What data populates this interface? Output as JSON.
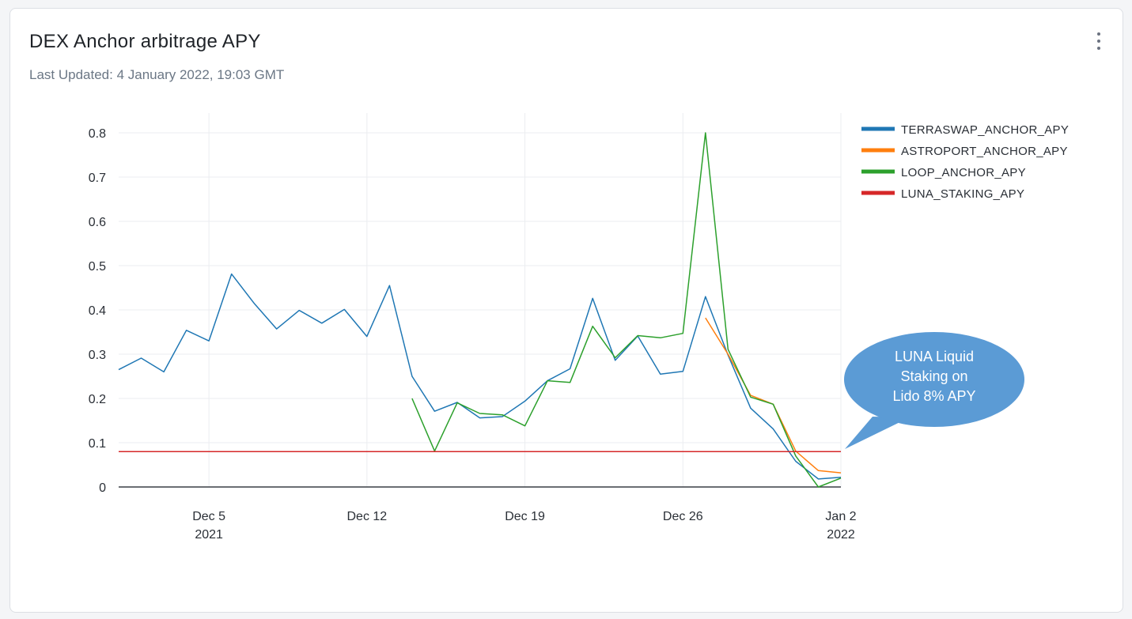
{
  "card": {
    "title": "DEX Anchor arbitrage APY",
    "subtitle": "Last Updated: 4 January 2022, 19:03 GMT",
    "menu_icon": "more-vertical-icon"
  },
  "callout": {
    "lines": [
      "LUNA Liquid",
      "Staking on",
      "Lido 8% APY"
    ],
    "color": "#5b9bd5"
  },
  "chart_data": {
    "type": "line",
    "x_axis": {
      "type": "date",
      "range": [
        "2021-12-01",
        "2022-01-02"
      ],
      "ticks": [
        {
          "date": "2021-12-05",
          "label": "Dec 5",
          "sublabel": "2021"
        },
        {
          "date": "2021-12-12",
          "label": "Dec 12",
          "sublabel": ""
        },
        {
          "date": "2021-12-19",
          "label": "Dec 19",
          "sublabel": ""
        },
        {
          "date": "2021-12-26",
          "label": "Dec 26",
          "sublabel": ""
        },
        {
          "date": "2022-01-02",
          "label": "Jan 2",
          "sublabel": "2022"
        }
      ]
    },
    "y_axis": {
      "range": [
        0,
        0.8
      ],
      "ticks": [
        0,
        0.1,
        0.2,
        0.3,
        0.4,
        0.5,
        0.6,
        0.7,
        0.8
      ],
      "tick_labels": [
        "0",
        "0.1",
        "0.2",
        "0.3",
        "0.4",
        "0.5",
        "0.6",
        "0.7",
        "0.8"
      ]
    },
    "grid": true,
    "legend_position": "top-right",
    "series": [
      {
        "name": "TERRASWAP_ANCHOR_APY",
        "color": "#1f77b4",
        "x": [
          "2021-12-01",
          "2021-12-02",
          "2021-12-03",
          "2021-12-04",
          "2021-12-05",
          "2021-12-06",
          "2021-12-07",
          "2021-12-08",
          "2021-12-09",
          "2021-12-10",
          "2021-12-11",
          "2021-12-12",
          "2021-12-13",
          "2021-12-14",
          "2021-12-15",
          "2021-12-16",
          "2021-12-17",
          "2021-12-18",
          "2021-12-19",
          "2021-12-20",
          "2021-12-21",
          "2021-12-22",
          "2021-12-23",
          "2021-12-24",
          "2021-12-25",
          "2021-12-26",
          "2021-12-27",
          "2021-12-28",
          "2021-12-29",
          "2021-12-30",
          "2021-12-31",
          "2022-01-01",
          "2022-01-02"
        ],
        "y": [
          0.265,
          0.291,
          0.26,
          0.354,
          0.33,
          0.481,
          0.415,
          0.357,
          0.399,
          0.37,
          0.401,
          0.34,
          0.455,
          0.25,
          0.171,
          0.191,
          0.156,
          0.159,
          0.194,
          0.24,
          0.267,
          0.426,
          0.286,
          0.341,
          0.255,
          0.261,
          0.43,
          0.298,
          0.178,
          0.131,
          0.058,
          0.018,
          0.022
        ]
      },
      {
        "name": "ASTROPORT_ANCHOR_APY",
        "color": "#ff7f0e",
        "x": [
          "2021-12-27",
          "2021-12-28",
          "2021-12-29",
          "2021-12-30",
          "2021-12-31",
          "2022-01-01",
          "2022-01-02"
        ],
        "y": [
          0.382,
          0.3,
          0.207,
          0.187,
          0.081,
          0.037,
          0.032
        ]
      },
      {
        "name": "LOOP_ANCHOR_APY",
        "color": "#2ca02c",
        "x": [
          "2021-12-14",
          "2021-12-15",
          "2021-12-16",
          "2021-12-17",
          "2021-12-18",
          "2021-12-19",
          "2021-12-20",
          "2021-12-21",
          "2021-12-22",
          "2021-12-23",
          "2021-12-24",
          "2021-12-25",
          "2021-12-26",
          "2021-12-27",
          "2021-12-28",
          "2021-12-29",
          "2021-12-30",
          "2021-12-31",
          "2022-01-01",
          "2022-01-02"
        ],
        "y": [
          0.2,
          0.081,
          0.19,
          0.166,
          0.163,
          0.138,
          0.24,
          0.236,
          0.363,
          0.292,
          0.342,
          0.337,
          0.347,
          0.8,
          0.311,
          0.203,
          0.187,
          0.07,
          0.0,
          0.02
        ]
      },
      {
        "name": "LUNA_STAKING_APY",
        "color": "#d62728",
        "x": [
          "2021-12-01",
          "2022-01-02"
        ],
        "y": [
          0.08,
          0.08
        ]
      }
    ]
  }
}
